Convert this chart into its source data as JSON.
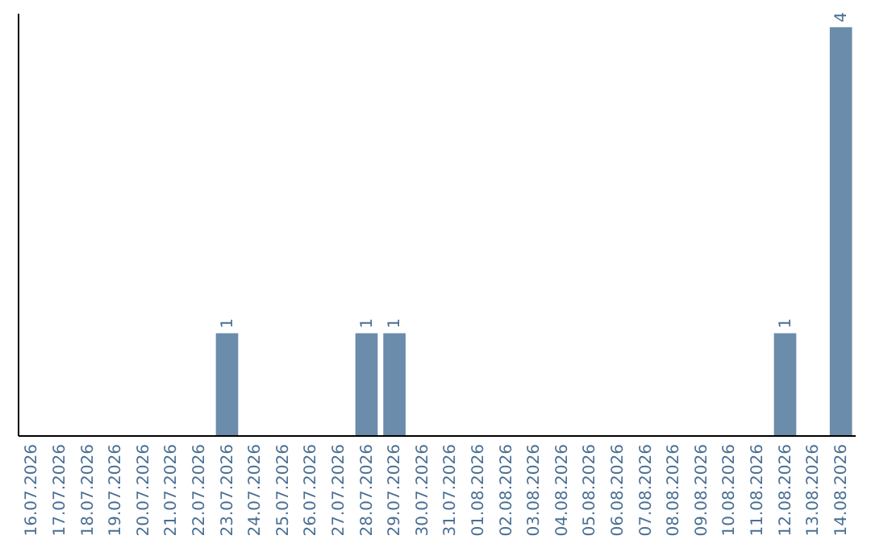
{
  "chart_data": {
    "type": "bar",
    "categories": [
      "16.07.2026",
      "17.07.2026",
      "18.07.2026",
      "19.07.2026",
      "20.07.2026",
      "21.07.2026",
      "22.07.2026",
      "23.07.2026",
      "24.07.2026",
      "25.07.2026",
      "26.07.2026",
      "27.07.2026",
      "28.07.2026",
      "29.07.2026",
      "30.07.2026",
      "31.07.2026",
      "01.08.2026",
      "02.08.2026",
      "03.08.2026",
      "04.08.2026",
      "05.08.2026",
      "06.08.2026",
      "07.08.2026",
      "08.08.2026",
      "09.08.2026",
      "10.08.2026",
      "11.08.2026",
      "12.08.2026",
      "13.08.2026",
      "14.08.2026"
    ],
    "values": [
      0,
      0,
      0,
      0,
      0,
      0,
      0,
      1,
      0,
      0,
      0,
      0,
      1,
      1,
      0,
      0,
      0,
      0,
      0,
      0,
      0,
      0,
      0,
      0,
      0,
      0,
      0,
      1,
      0,
      4
    ],
    "value_labels": [
      null,
      null,
      null,
      null,
      null,
      null,
      null,
      "1",
      null,
      null,
      null,
      null,
      "1",
      "1",
      null,
      null,
      null,
      null,
      null,
      null,
      null,
      null,
      null,
      null,
      null,
      null,
      null,
      "1",
      null,
      "4"
    ],
    "color": "#6b8cab",
    "tick_labels": "x",
    "grid": false
  }
}
